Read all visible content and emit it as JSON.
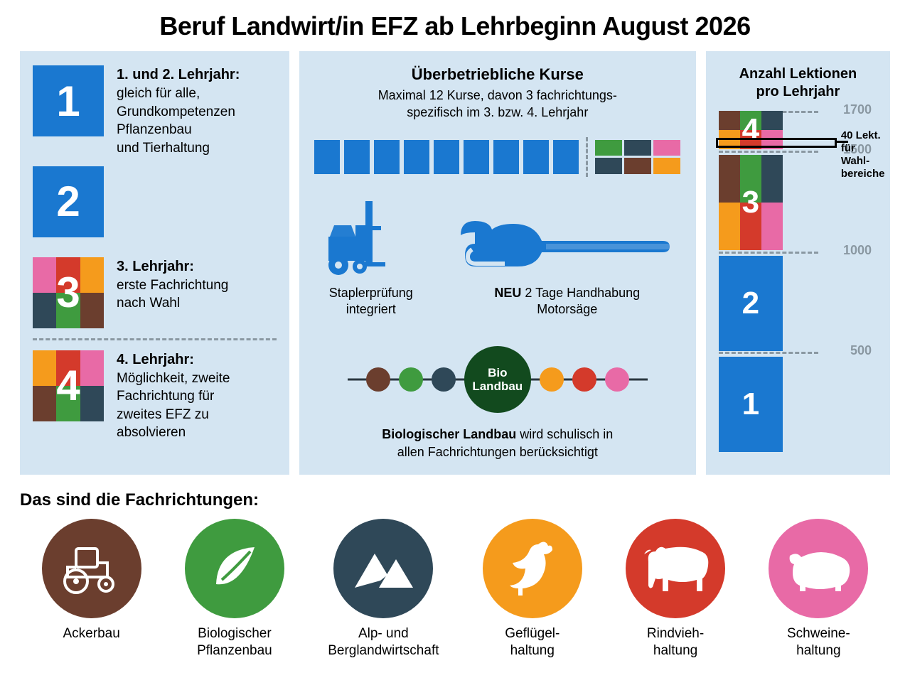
{
  "title": "Beruf Landwirt/in EFZ ab Lehrbeginn August 2026",
  "colors": {
    "blue": "#1a78d0",
    "panel": "#d4e5f2",
    "brown": "#6b3e2e",
    "green": "#3f9b3f",
    "darkblue": "#2f4858",
    "orange": "#f59b1c",
    "red": "#d43a2b",
    "pink": "#e86aa6",
    "biogreen": "#124a1e",
    "grey": "#8a98a2"
  },
  "left": {
    "year12": {
      "heading": "1. und 2. Lehrjahr:",
      "text": "gleich für alle,\nGrundkompetenzen\nPflanzenbau\nund Tierhaltung"
    },
    "year3": {
      "heading": "3. Lehrjahr:",
      "text": "erste Fachrichtung\nnach Wahl",
      "cells": [
        "brown",
        "green",
        "darkblue",
        "orange",
        "red",
        "pink"
      ]
    },
    "year4": {
      "heading": "4. Lehrjahr:",
      "text": "Möglichkeit, zweite\nFachrichtung für\nzweites EFZ zu absolvieren",
      "cells": [
        "darkblue",
        "green",
        "brown",
        "pink",
        "red",
        "orange"
      ]
    }
  },
  "mid": {
    "title": "Überbetriebliche Kurse",
    "subtitle": "Maximal 12 Kurse, davon 3 fachrichtungs-\nspezifisch im 3. bzw. 4. Lehrjahr",
    "course_common_count": 9,
    "course_grid": [
      "green",
      "darkblue",
      "pink",
      "darkblue",
      "brown",
      "orange"
    ],
    "equip": [
      {
        "text_plain": "Staplerprüfung\nintegriert",
        "bold": ""
      },
      {
        "bold": "NEU",
        "text_plain": " 2 Tage Handhabung\nMotorsäge"
      }
    ],
    "bio_dots": [
      "brown",
      "green",
      "darkblue",
      "BIG",
      "orange",
      "red",
      "pink"
    ],
    "bio_label": "Bio\nLandbau",
    "bio_text_bold": "Biologischer Landbau",
    "bio_text_rest": " wird schulisch in\nallen Fachrichtungen berücksichtigt"
  },
  "right": {
    "title": "Anzahl Lektionen\npro Lehrjahr",
    "axis_max": 1700,
    "ticks": [
      500,
      1000,
      1500,
      1700
    ],
    "bars": [
      {
        "label": "1",
        "type": "solid",
        "color": "blue",
        "from": 0,
        "to": 500
      },
      {
        "label": "2",
        "type": "solid",
        "color": "blue",
        "from": 500,
        "to": 1000
      },
      {
        "label": "3",
        "type": "multi",
        "cells": [
          "brown",
          "green",
          "darkblue",
          "orange",
          "red",
          "pink"
        ],
        "from": 1000,
        "to": 1500
      },
      {
        "label": "4",
        "type": "multi",
        "cells": [
          "brown",
          "green",
          "darkblue",
          "orange",
          "red",
          "pink"
        ],
        "from": 1500,
        "to": 1700
      }
    ],
    "highlight": {
      "from": 1460,
      "to": 1510
    },
    "annotation": "40 Lekt.\nfür Wahl-\nbereiche"
  },
  "fach": {
    "title": "Das sind die Fachrichtungen:",
    "items": [
      {
        "label": "Ackerbau",
        "color": "brown",
        "icon": "tractor"
      },
      {
        "label": "Biologischer\nPflanzenbau",
        "color": "green",
        "icon": "leaf"
      },
      {
        "label": "Alp- und\nBerglandwirtschaft",
        "color": "darkblue",
        "icon": "mountain"
      },
      {
        "label": "Geflügel-\nhaltung",
        "color": "orange",
        "icon": "chicken"
      },
      {
        "label": "Rindvieh-\nhaltung",
        "color": "red",
        "icon": "cow"
      },
      {
        "label": "Schweine-\nhaltung",
        "color": "pink",
        "icon": "pig"
      }
    ]
  }
}
